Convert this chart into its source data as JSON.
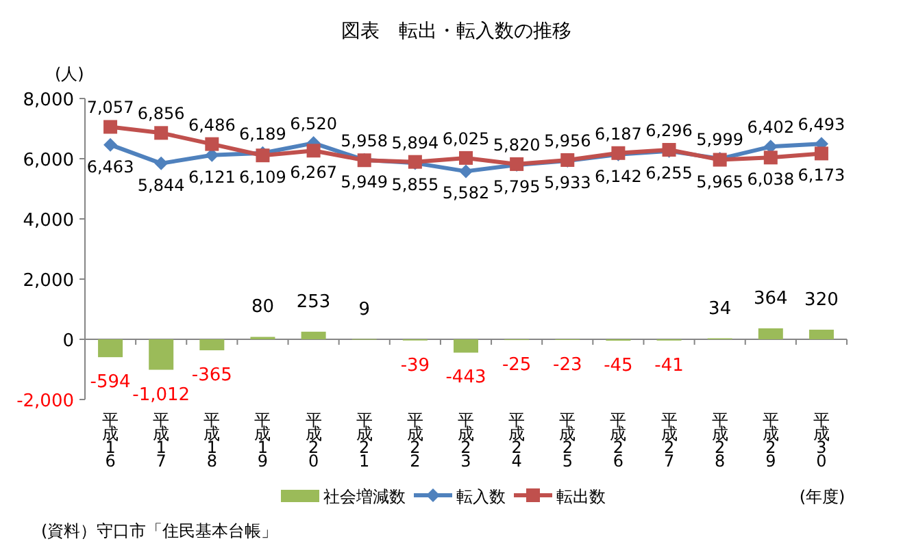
{
  "chart_data": {
    "type": "bar",
    "title": "図表　転出・転入数の推移",
    "ylabel": "(人)",
    "xlabel": "(年度)",
    "annotations": [
      "(資料）守口市「住民基本台帳」"
    ],
    "categories": [
      "平成16",
      "平成17",
      "平成18",
      "平成19",
      "平成20",
      "平成21",
      "平成22",
      "平成23",
      "平成24",
      "平成25",
      "平成26",
      "平成27",
      "平成28",
      "平成29",
      "平成30"
    ],
    "series": [
      {
        "name": "社会増減数",
        "color": "#9bbb59",
        "values": [
          -594,
          -1012,
          -365,
          80,
          253,
          9,
          -39,
          -443,
          -25,
          -23,
          -45,
          -41,
          34,
          364,
          320
        ],
        "value_labels": [
          "-594",
          "-1,012",
          "-365",
          "80",
          "253",
          "9",
          "-39",
          "-443",
          "-25",
          "-23",
          "-45",
          "-41",
          "34",
          "364",
          "320"
        ]
      },
      {
        "name": "転入数",
        "type": "line",
        "color": "#4f81bd",
        "marker": "diamond",
        "values": [
          6463,
          5844,
          6121,
          6189,
          6520,
          5958,
          5855,
          5582,
          5795,
          5933,
          6142,
          6255,
          5999,
          6402,
          6493
        ],
        "value_labels": [
          "6,463",
          "5,844",
          "6,121",
          "6,189",
          "6,520",
          "5,958",
          "5,855",
          "5,582",
          "5,795",
          "5,933",
          "6,142",
          "6,255",
          "5,999",
          "6,402",
          "6,493"
        ]
      },
      {
        "name": "転出数",
        "type": "line",
        "color": "#c0504d",
        "marker": "square",
        "values": [
          7057,
          6856,
          6486,
          6109,
          6267,
          5949,
          5894,
          6025,
          5820,
          5956,
          6187,
          6296,
          5965,
          6038,
          6173
        ],
        "value_labels": [
          "7,057",
          "6,856",
          "6,486",
          "6,109",
          "6,267",
          "5,949",
          "5,894",
          "6,025",
          "5,820",
          "5,956",
          "6,187",
          "6,296",
          "5,965",
          "6,038",
          "6,173"
        ]
      }
    ],
    "ylim": [
      -2000,
      8000
    ],
    "yticks": [
      {
        "value": -2000,
        "label": "-2,000"
      },
      0,
      {
        "value": 2000,
        "label": "2,000"
      },
      {
        "value": 4000,
        "label": "4,000"
      },
      {
        "value": 6000,
        "label": "6,000"
      },
      {
        "value": 8000,
        "label": "8,000"
      }
    ],
    "legend": "bottom"
  }
}
